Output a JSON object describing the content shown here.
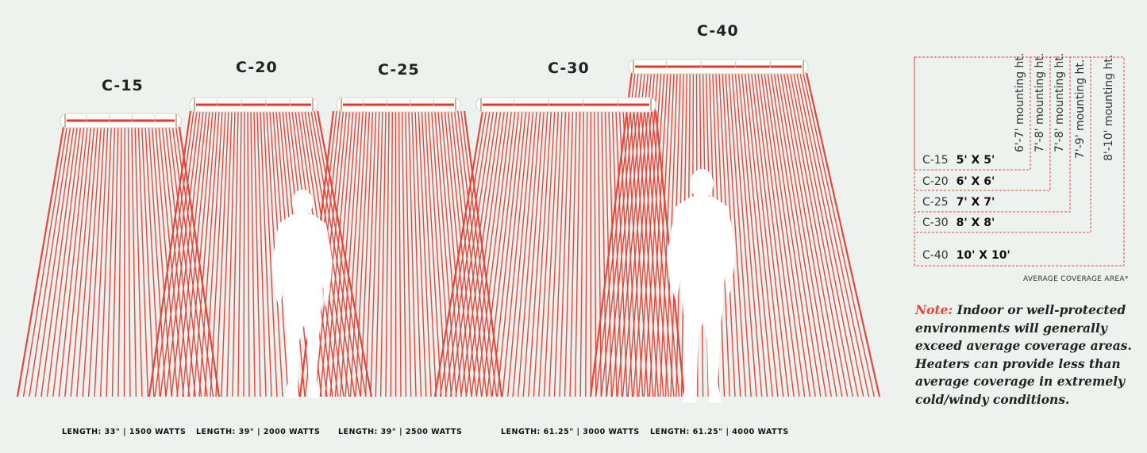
{
  "colors": {
    "beam": "#e8453a",
    "heater_bar": "#e23a2c",
    "background": "#eef2ef",
    "silhouette": "#ffffff"
  },
  "heaters": [
    {
      "model": "C-15",
      "spec": "LENGTH: 33\" | 1500 WATTS"
    },
    {
      "model": "C-20",
      "spec": "LENGTH: 39\" | 2000 WATTS"
    },
    {
      "model": "C-25",
      "spec": "LENGTH: 39\" | 2500 WATTS"
    },
    {
      "model": "C-30",
      "spec": "LENGTH: 61.25\" | 3000 WATTS"
    },
    {
      "model": "C-40",
      "spec": "LENGTH: 61.25\" | 4000 WATTS"
    }
  ],
  "legend": {
    "rows": [
      {
        "model": "C-15",
        "size": "5' X 5'",
        "mounting": "6'-7' mounting ht."
      },
      {
        "model": "C-20",
        "size": "6' X 6'",
        "mounting": "7'-8' mounting ht."
      },
      {
        "model": "C-25",
        "size": "7' X 7'",
        "mounting": "7'-8' mounting ht."
      },
      {
        "model": "C-30",
        "size": "8' X 8'",
        "mounting": "7'-9' mounting ht."
      },
      {
        "model": "C-40",
        "size": "10' X 10'",
        "mounting": "8'-10' mounting ht."
      }
    ],
    "caption": "AVERAGE COVERAGE AREA*"
  },
  "note": {
    "label": "Note:",
    "text": "Indoor or well-protected environments will generally exceed average coverage areas. Heaters can provide less than average coverage in extremely cold/windy conditions."
  }
}
